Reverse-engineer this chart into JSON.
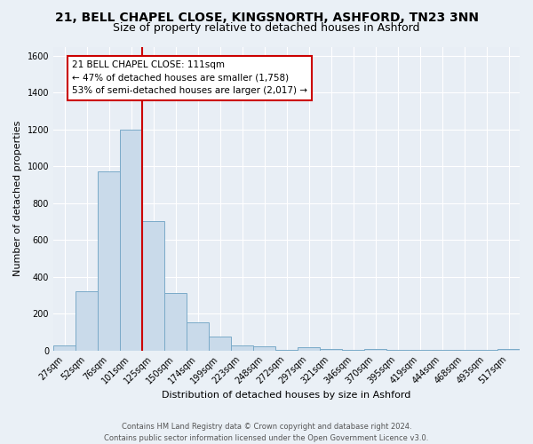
{
  "title": "21, BELL CHAPEL CLOSE, KINGSNORTH, ASHFORD, TN23 3NN",
  "subtitle": "Size of property relative to detached houses in Ashford",
  "xlabel": "Distribution of detached houses by size in Ashford",
  "ylabel": "Number of detached properties",
  "bar_labels": [
    "27sqm",
    "52sqm",
    "76sqm",
    "101sqm",
    "125sqm",
    "150sqm",
    "174sqm",
    "199sqm",
    "223sqm",
    "248sqm",
    "272sqm",
    "297sqm",
    "321sqm",
    "346sqm",
    "370sqm",
    "395sqm",
    "419sqm",
    "444sqm",
    "468sqm",
    "493sqm",
    "517sqm"
  ],
  "bar_values": [
    28,
    320,
    970,
    1200,
    700,
    310,
    150,
    75,
    25,
    20,
    5,
    15,
    10,
    3,
    10,
    5,
    3,
    2,
    2,
    2,
    10
  ],
  "bar_color": "#c9daea",
  "bar_edge_color": "#7aaac8",
  "vline_x": 3.5,
  "vline_color": "#cc0000",
  "annotation_box_text": "21 BELL CHAPEL CLOSE: 111sqm\n← 47% of detached houses are smaller (1,758)\n53% of semi-detached houses are larger (2,017) →",
  "annotation_box_color": "white",
  "annotation_box_edge_color": "#cc0000",
  "ylim": [
    0,
    1650
  ],
  "yticks": [
    0,
    200,
    400,
    600,
    800,
    1000,
    1200,
    1400,
    1600
  ],
  "footer_line1": "Contains HM Land Registry data © Crown copyright and database right 2024.",
  "footer_line2": "Contains public sector information licensed under the Open Government Licence v3.0.",
  "bg_color": "#eaf0f6",
  "plot_bg_color": "#e8eef5",
  "grid_color": "#ffffff",
  "title_fontsize": 10,
  "subtitle_fontsize": 9,
  "axis_label_fontsize": 8,
  "tick_fontsize": 7,
  "annotation_fontsize": 7.5,
  "footer_fontsize": 6
}
